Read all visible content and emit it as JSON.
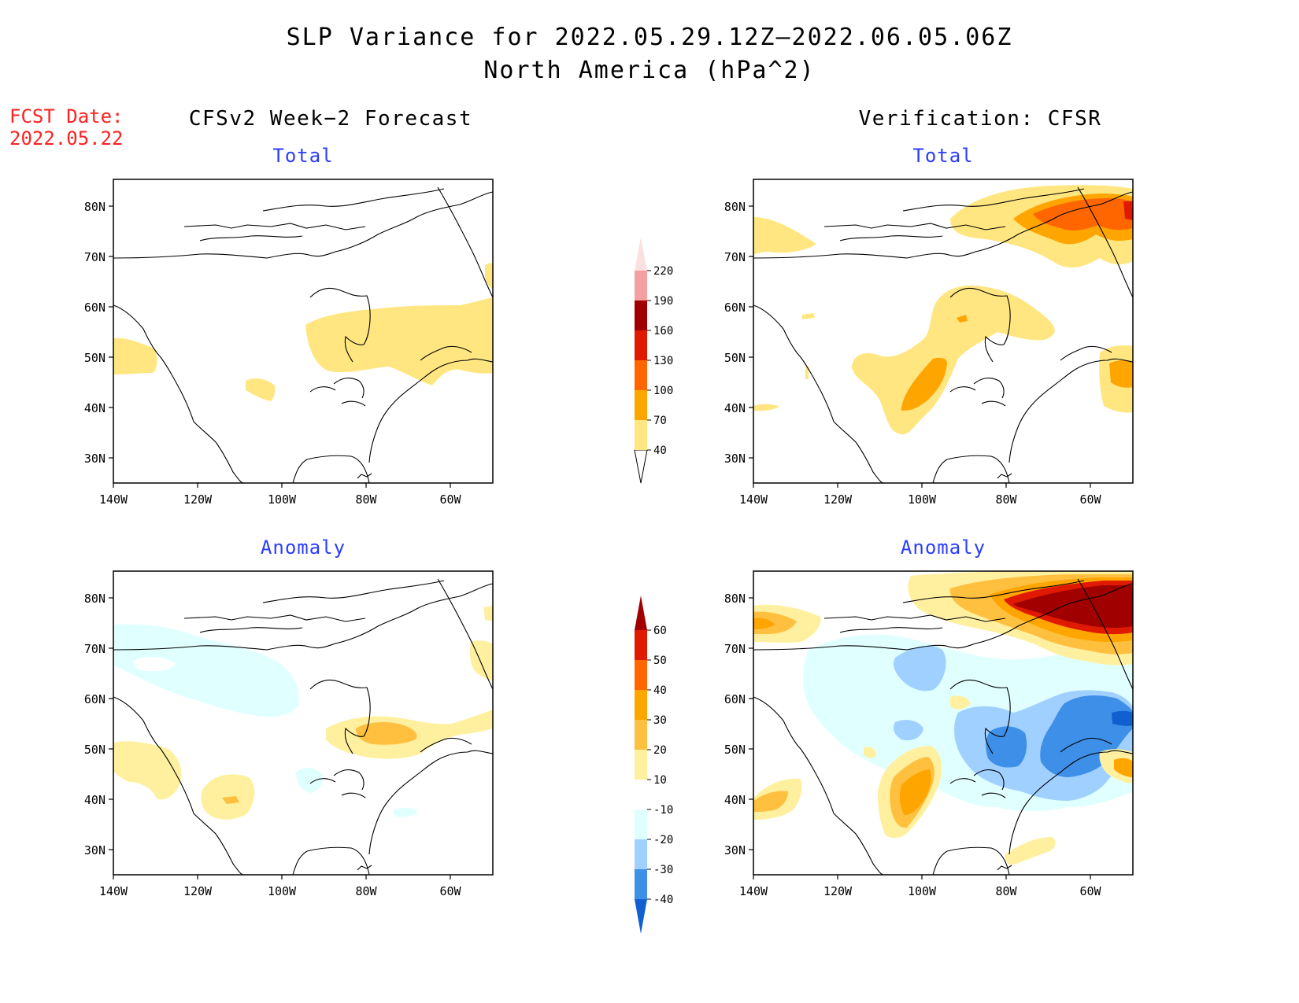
{
  "header": {
    "title_line1": "SLP Variance for 2022.05.29.12Z–2022.06.05.06Z",
    "title_line2": "North America (hPa^2)",
    "fcst_label": "FCST Date:",
    "fcst_date": "2022.05.22"
  },
  "columns": {
    "left": "CFSv2 Week−2 Forecast",
    "right": "Verification: CFSR"
  },
  "panels": {
    "top_left": "Total",
    "top_right": "Total",
    "bottom_left": "Anomaly",
    "bottom_right": "Anomaly"
  },
  "axes": {
    "lat_labels": [
      "80N",
      "70N",
      "60N",
      "50N",
      "40N",
      "30N"
    ],
    "lon_labels": [
      "140W",
      "120W",
      "100W",
      "80W",
      "60W"
    ]
  },
  "colorbars": {
    "total": {
      "levels": [
        "40",
        "70",
        "100",
        "130",
        "160",
        "190",
        "220"
      ],
      "colors": [
        "#ffe680",
        "#ffa500",
        "#ff6600",
        "#e01a00",
        "#a00000",
        "#f4a0a0",
        "#fbe0e0"
      ]
    },
    "anomaly": {
      "levels": [
        "60",
        "50",
        "40",
        "30",
        "20",
        "10",
        "-10",
        "-20",
        "-30",
        "-40"
      ],
      "colors": [
        "#a00000",
        "#e01a00",
        "#ff6600",
        "#ffa500",
        "#ffc040",
        "#fff0a0",
        "#ffffff",
        "#e0ffff",
        "#a0d0ff",
        "#3d8fe8",
        "#1060d0"
      ]
    }
  },
  "palette": {
    "light_yellow": "#fff0a0",
    "yellow": "#ffe680",
    "light_orange": "#ffc040",
    "orange": "#ffa500",
    "dark_orange": "#ff6600",
    "red": "#e01a00",
    "dark_red": "#a00000",
    "pale_blue": "#e0ffff",
    "light_blue": "#a0d0ff",
    "blue": "#3d8fe8",
    "title_blue": "#2a3cff",
    "fcst_red": "#ff2020"
  }
}
